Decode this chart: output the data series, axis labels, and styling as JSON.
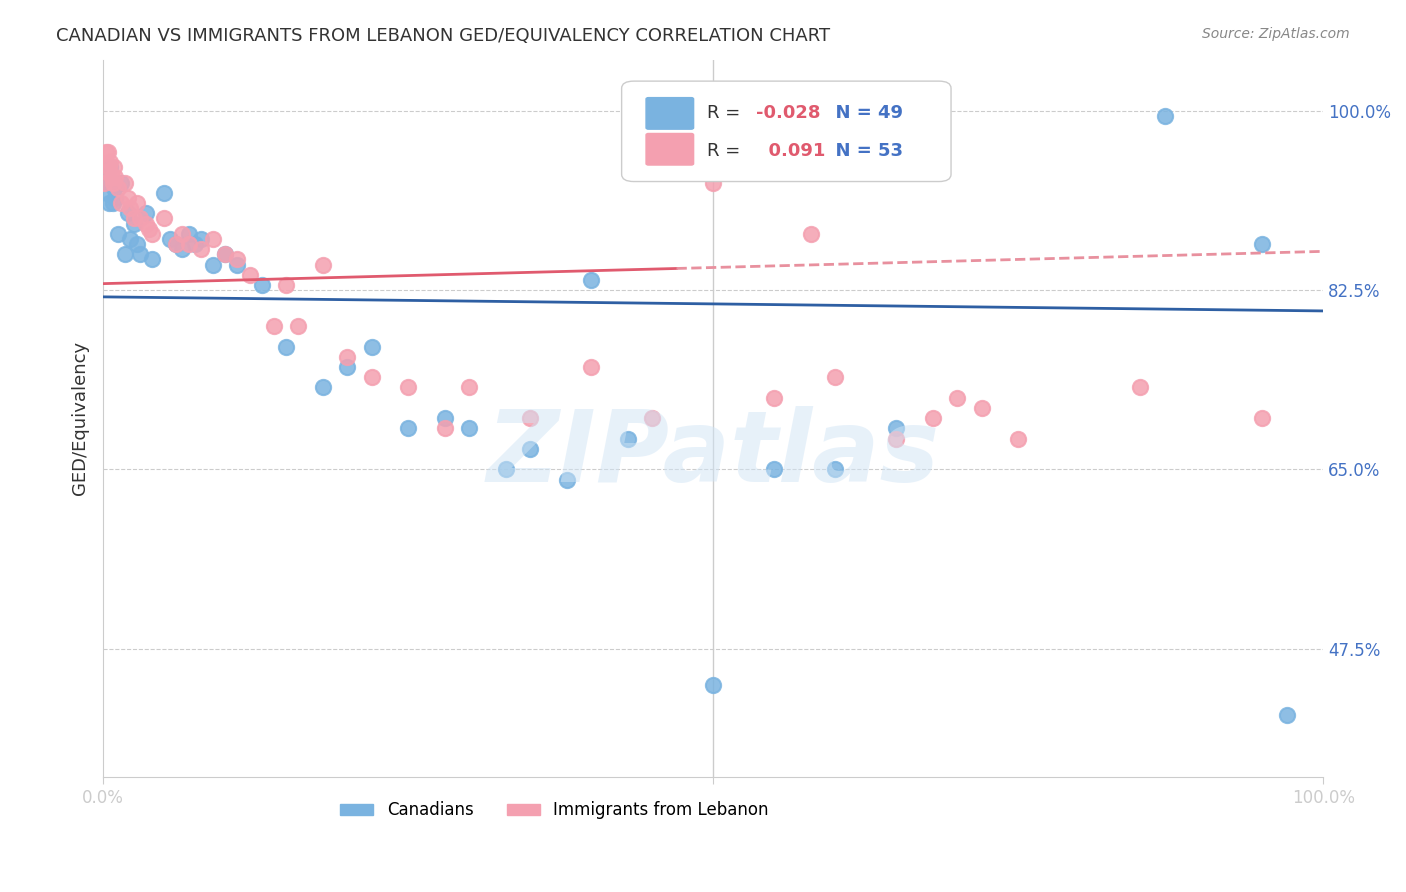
{
  "title": "CANADIAN VS IMMIGRANTS FROM LEBANON GED/EQUIVALENCY CORRELATION CHART",
  "source": "Source: ZipAtlas.com",
  "ylabel": "GED/Equivalency",
  "xlabel": "",
  "xlim": [
    0.0,
    1.0
  ],
  "ylim": [
    0.35,
    1.05
  ],
  "yticks": [
    0.475,
    0.5,
    0.65,
    0.825,
    1.0
  ],
  "ytick_labels": [
    "47.5%",
    "",
    "65.0%",
    "82.5%",
    "100.0%"
  ],
  "xticks": [
    0.0,
    0.2,
    0.4,
    0.5,
    0.6,
    0.8,
    1.0
  ],
  "xtick_labels": [
    "0.0%",
    "",
    "",
    "",
    "",
    "",
    "100.0%"
  ],
  "canadian_color": "#7ab3e0",
  "lebanon_color": "#f4a0b0",
  "trend_canadian_color": "#2e5fa3",
  "trend_lebanon_color": "#e05a6e",
  "trend_lebanon_dashed_color": "#e8909e",
  "R_canadian": -0.028,
  "N_canadian": 49,
  "R_lebanon": 0.091,
  "N_lebanon": 53,
  "canadian_x": [
    0.002,
    0.003,
    0.004,
    0.005,
    0.006,
    0.007,
    0.008,
    0.009,
    0.01,
    0.012,
    0.015,
    0.018,
    0.02,
    0.022,
    0.025,
    0.028,
    0.03,
    0.035,
    0.04,
    0.05,
    0.055,
    0.06,
    0.065,
    0.07,
    0.075,
    0.08,
    0.09,
    0.1,
    0.11,
    0.13,
    0.15,
    0.18,
    0.2,
    0.22,
    0.25,
    0.28,
    0.3,
    0.33,
    0.35,
    0.38,
    0.4,
    0.43,
    0.5,
    0.55,
    0.6,
    0.65,
    0.87,
    0.95,
    0.97
  ],
  "canadian_y": [
    0.94,
    0.92,
    0.93,
    0.91,
    0.945,
    0.93,
    0.91,
    0.925,
    0.915,
    0.88,
    0.93,
    0.86,
    0.9,
    0.875,
    0.89,
    0.87,
    0.86,
    0.9,
    0.855,
    0.92,
    0.875,
    0.87,
    0.865,
    0.88,
    0.87,
    0.875,
    0.85,
    0.86,
    0.85,
    0.83,
    0.77,
    0.73,
    0.75,
    0.77,
    0.69,
    0.7,
    0.69,
    0.65,
    0.67,
    0.64,
    0.835,
    0.68,
    0.44,
    0.65,
    0.65,
    0.69,
    0.995,
    0.87,
    0.41
  ],
  "lebanon_x": [
    0.001,
    0.002,
    0.003,
    0.004,
    0.005,
    0.006,
    0.007,
    0.008,
    0.009,
    0.01,
    0.012,
    0.015,
    0.018,
    0.02,
    0.022,
    0.025,
    0.028,
    0.03,
    0.035,
    0.038,
    0.04,
    0.05,
    0.06,
    0.065,
    0.07,
    0.08,
    0.09,
    0.1,
    0.11,
    0.12,
    0.14,
    0.15,
    0.16,
    0.18,
    0.2,
    0.22,
    0.25,
    0.28,
    0.3,
    0.35,
    0.4,
    0.45,
    0.5,
    0.55,
    0.58,
    0.6,
    0.65,
    0.68,
    0.7,
    0.72,
    0.75,
    0.85,
    0.95
  ],
  "lebanon_y": [
    0.93,
    0.96,
    0.94,
    0.96,
    0.945,
    0.95,
    0.935,
    0.93,
    0.945,
    0.935,
    0.925,
    0.91,
    0.93,
    0.915,
    0.905,
    0.895,
    0.91,
    0.895,
    0.89,
    0.885,
    0.88,
    0.895,
    0.87,
    0.88,
    0.87,
    0.865,
    0.875,
    0.86,
    0.855,
    0.84,
    0.79,
    0.83,
    0.79,
    0.85,
    0.76,
    0.74,
    0.73,
    0.69,
    0.73,
    0.7,
    0.75,
    0.7,
    0.93,
    0.72,
    0.88,
    0.74,
    0.68,
    0.7,
    0.72,
    0.71,
    0.68,
    0.73,
    0.7
  ],
  "watermark": "ZIPatlas",
  "background_color": "#ffffff",
  "grid_color": "#cccccc",
  "title_color": "#333333",
  "axis_label_color": "#333333",
  "tick_color": "#4472c4",
  "right_tick_color": "#4472c4"
}
